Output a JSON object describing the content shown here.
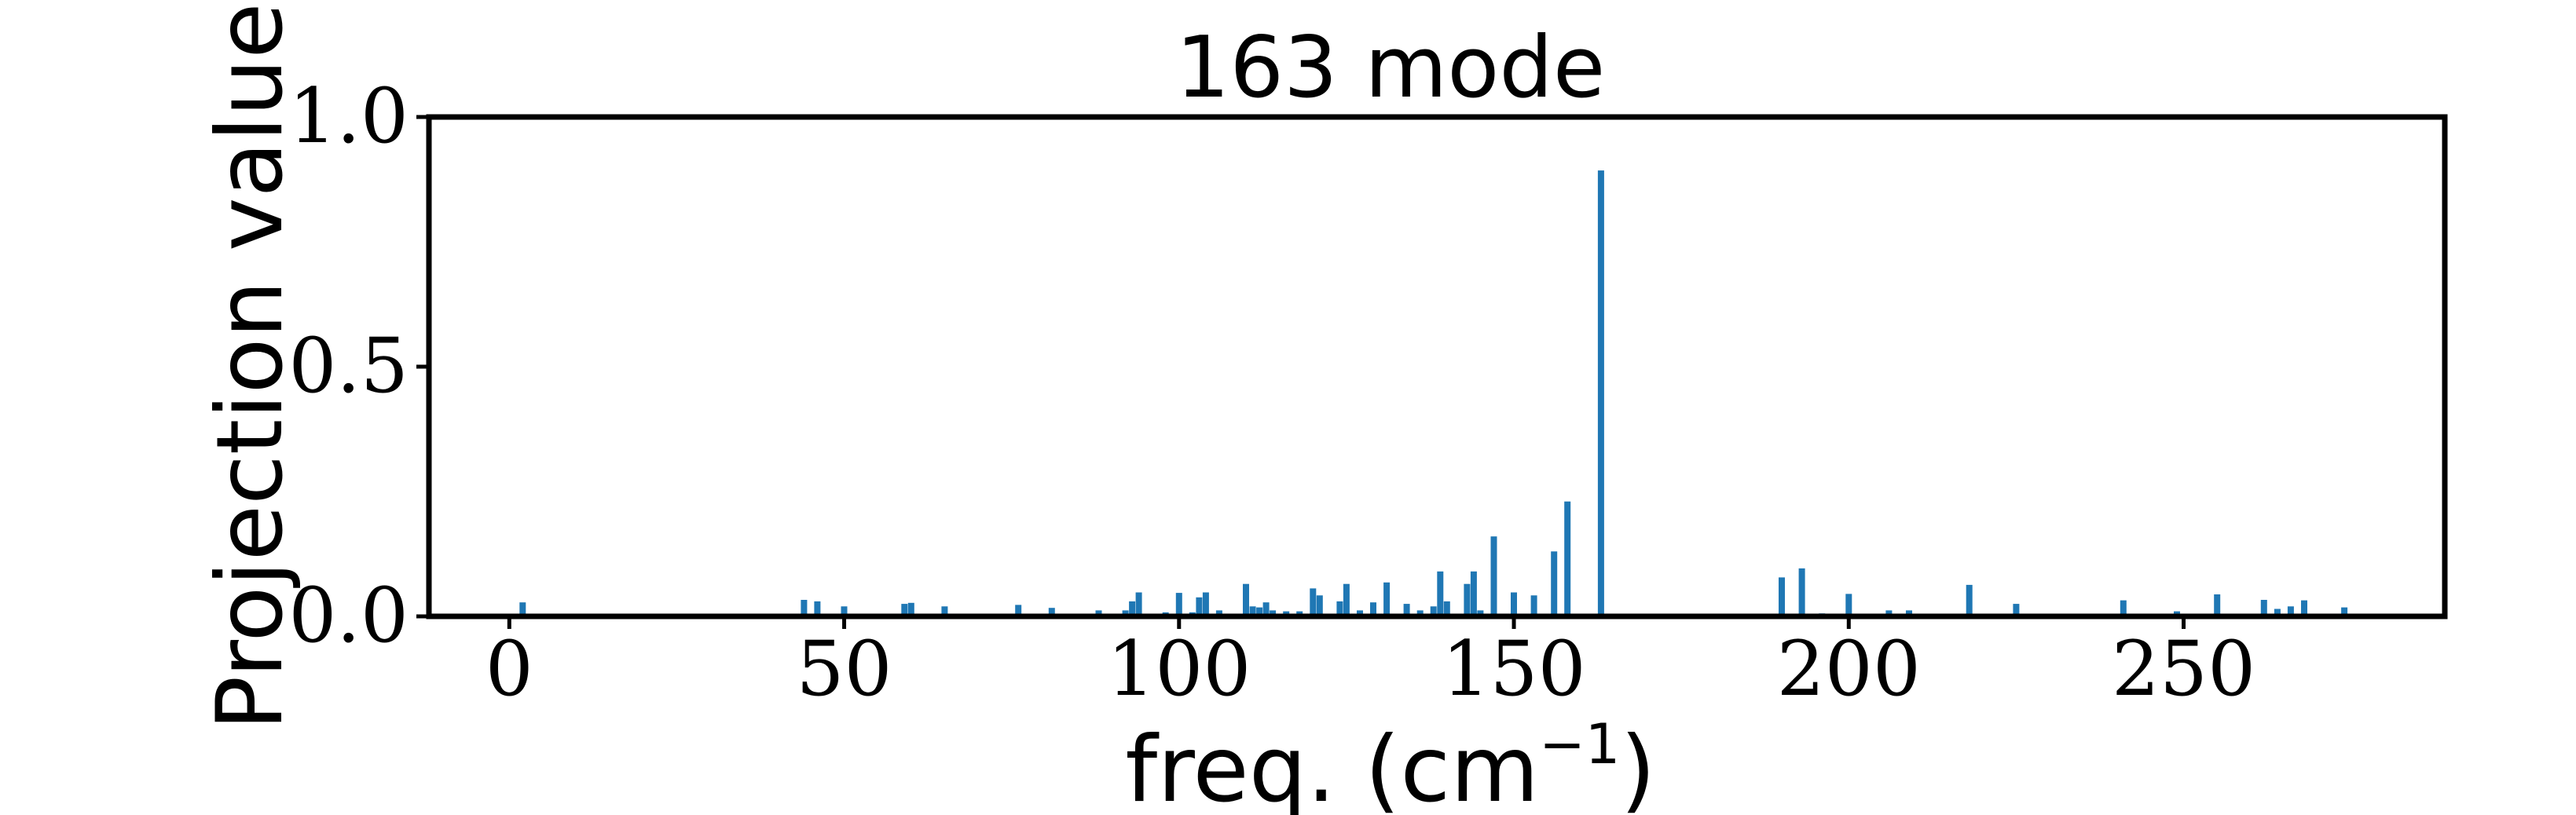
{
  "chart_data": {
    "type": "bar",
    "title": "163 mode",
    "xlabel": "freq. (cm",
    "xlabel_exponent": "−1",
    "xlabel_suffix": ")",
    "ylabel": "Projection value",
    "xlim": [
      -12,
      289
    ],
    "ylim": [
      0,
      1.0
    ],
    "x_ticks": [
      0,
      50,
      100,
      150,
      200,
      250
    ],
    "x_tick_labels": [
      "0",
      "50",
      "100",
      "150",
      "200",
      "250"
    ],
    "y_ticks": [
      0,
      0.5,
      1.0
    ],
    "y_tick_labels": [
      "0.0",
      "0.5",
      "1.0"
    ],
    "grid": false,
    "bar_color": "#1f77b4",
    "series": [
      {
        "x": [
          2,
          44,
          46,
          50,
          59,
          60,
          65,
          76,
          81,
          88,
          92,
          93,
          94,
          98,
          100,
          102,
          103,
          104,
          106,
          110,
          111,
          112,
          113,
          114,
          116,
          118,
          120,
          121,
          123,
          124,
          125,
          127,
          129,
          131,
          134,
          136,
          138,
          139,
          140,
          142,
          143,
          144,
          145,
          147,
          150,
          153,
          156,
          158,
          163,
          190,
          193,
          196,
          200,
          203,
          206,
          209,
          218,
          225,
          241,
          249,
          255,
          262,
          264,
          266,
          268,
          274
        ],
        "values": [
          0.028,
          0.033,
          0.03,
          0.02,
          0.025,
          0.027,
          0.02,
          0.023,
          0.017,
          0.012,
          0.012,
          0.03,
          0.048,
          0.008,
          0.047,
          0.008,
          0.038,
          0.048,
          0.012,
          0.065,
          0.02,
          0.018,
          0.028,
          0.012,
          0.01,
          0.01,
          0.056,
          0.042,
          0.005,
          0.03,
          0.065,
          0.012,
          0.028,
          0.068,
          0.025,
          0.012,
          0.02,
          0.09,
          0.03,
          0.005,
          0.065,
          0.09,
          0.012,
          0.16,
          0.048,
          0.042,
          0.13,
          0.23,
          0.893,
          0.078,
          0.096,
          0.006,
          0.045,
          0.004,
          0.012,
          0.012,
          0.063,
          0.025,
          0.032,
          0.01,
          0.044,
          0.033,
          0.015,
          0.02,
          0.032,
          0.018
        ]
      }
    ]
  }
}
